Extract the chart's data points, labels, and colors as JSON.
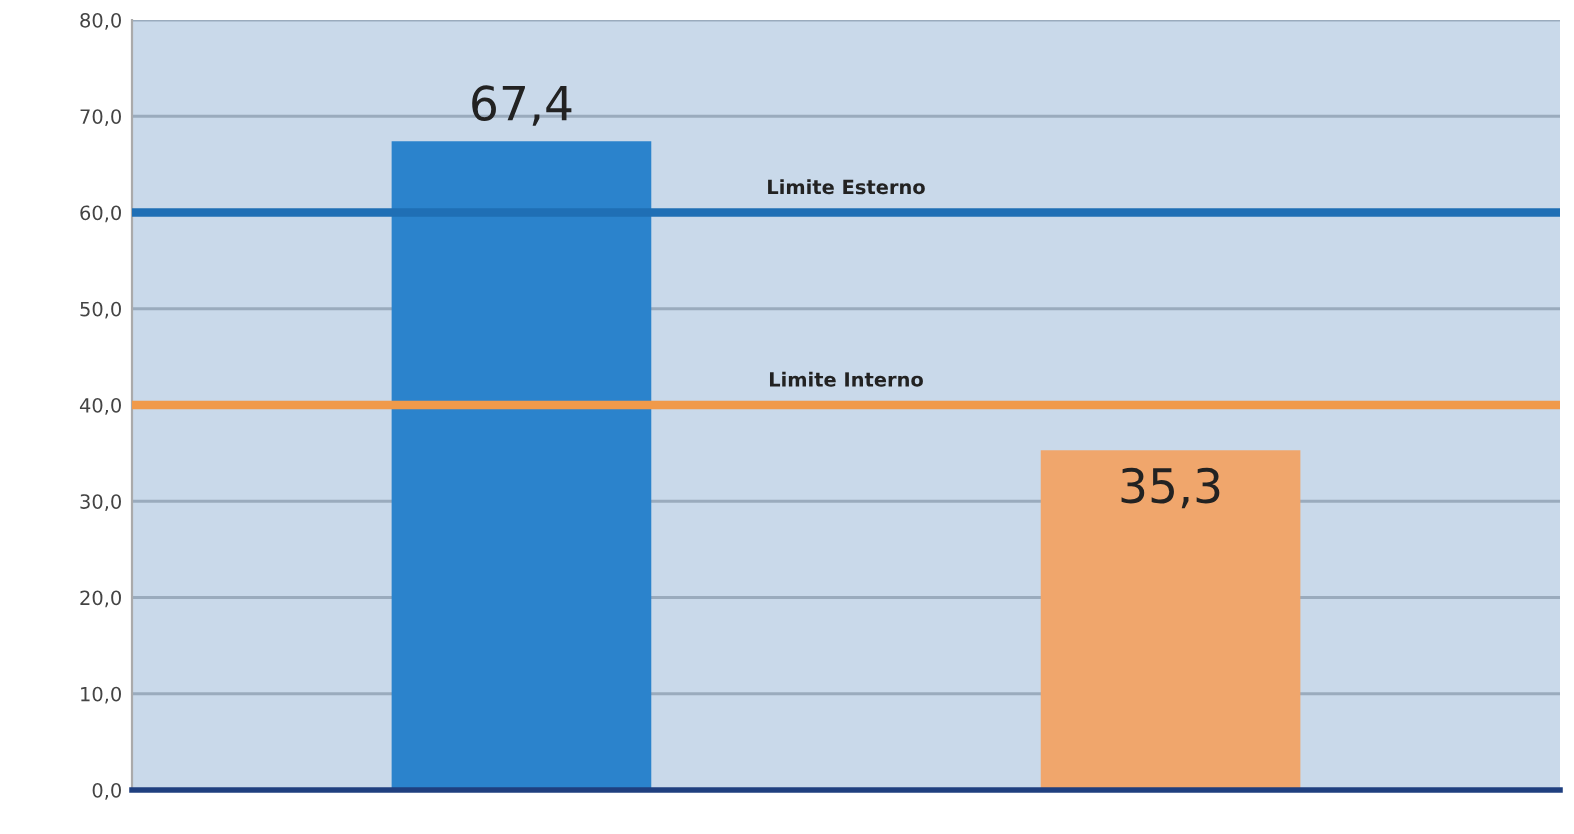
{
  "chart_data": {
    "type": "bar",
    "categories": [
      null,
      null
    ],
    "values": [
      67.4,
      35.3
    ],
    "colors": [
      "#2b83cc",
      "#f0a66c"
    ],
    "value_labels": [
      "67,4",
      "35,3"
    ],
    "ylim": [
      0,
      80
    ],
    "yticks": [
      {
        "value": 0,
        "label": "0,0"
      },
      {
        "value": 10,
        "label": "10,0"
      },
      {
        "value": 20,
        "label": "20,0"
      },
      {
        "value": 30,
        "label": "30,0"
      },
      {
        "value": 40,
        "label": "40,0"
      },
      {
        "value": 50,
        "label": "50,0"
      },
      {
        "value": 60,
        "label": "60,0"
      },
      {
        "value": 70,
        "label": "70,0"
      },
      {
        "value": 80,
        "label": "80,0"
      }
    ],
    "grid": "y",
    "ref_lines": [
      {
        "axis": "y",
        "value": 60,
        "label": "Limite Esterno",
        "color": "#1f6fb5"
      },
      {
        "axis": "y",
        "value": 40,
        "label": "Limite Interno",
        "color": "#f09a4a"
      }
    ]
  }
}
